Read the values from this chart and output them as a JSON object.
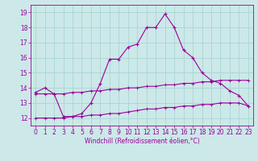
{
  "xlabel": "Windchill (Refroidissement éolien,°C)",
  "ylabel": "",
  "bg_color": "#cce8e8",
  "line_color": "#990099",
  "grid_color": "#aad4d4",
  "xlim": [
    -0.5,
    23.5
  ],
  "ylim": [
    11.5,
    19.5
  ],
  "xticks": [
    0,
    1,
    2,
    3,
    4,
    5,
    6,
    7,
    8,
    9,
    10,
    11,
    12,
    13,
    14,
    15,
    16,
    17,
    18,
    19,
    20,
    21,
    22,
    23
  ],
  "yticks": [
    12,
    13,
    14,
    15,
    16,
    17,
    18,
    19
  ],
  "curve1_x": [
    0,
    1,
    2,
    3,
    4,
    5,
    6,
    7,
    8,
    9,
    10,
    11,
    12,
    13,
    14,
    15,
    16,
    17,
    18,
    19,
    20,
    21,
    22,
    23
  ],
  "curve1_y": [
    13.7,
    14.0,
    13.6,
    12.1,
    12.1,
    12.3,
    13.0,
    14.3,
    15.9,
    15.9,
    16.7,
    16.9,
    18.0,
    18.0,
    18.9,
    18.0,
    16.5,
    16.0,
    15.0,
    14.5,
    14.3,
    13.8,
    13.5,
    12.8
  ],
  "curve2_x": [
    0,
    1,
    2,
    3,
    4,
    5,
    6,
    7,
    8,
    9,
    10,
    11,
    12,
    13,
    14,
    15,
    16,
    17,
    18,
    19,
    20,
    21,
    22,
    23
  ],
  "curve2_y": [
    13.6,
    13.6,
    13.6,
    13.6,
    13.7,
    13.7,
    13.8,
    13.8,
    13.9,
    13.9,
    14.0,
    14.0,
    14.1,
    14.1,
    14.2,
    14.2,
    14.3,
    14.3,
    14.4,
    14.4,
    14.5,
    14.5,
    14.5,
    14.5
  ],
  "curve3_x": [
    0,
    1,
    2,
    3,
    4,
    5,
    6,
    7,
    8,
    9,
    10,
    11,
    12,
    13,
    14,
    15,
    16,
    17,
    18,
    19,
    20,
    21,
    22,
    23
  ],
  "curve3_y": [
    12.0,
    12.0,
    12.0,
    12.0,
    12.1,
    12.1,
    12.2,
    12.2,
    12.3,
    12.3,
    12.4,
    12.5,
    12.6,
    12.6,
    12.7,
    12.7,
    12.8,
    12.8,
    12.9,
    12.9,
    13.0,
    13.0,
    13.0,
    12.8
  ],
  "tick_fontsize": 5.5,
  "xlabel_fontsize": 5.5
}
